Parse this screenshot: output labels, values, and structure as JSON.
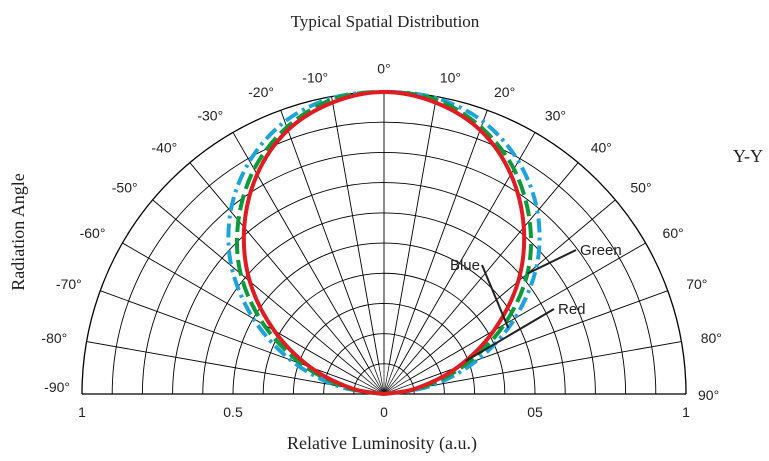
{
  "chart_data": {
    "type": "polar",
    "title": "Typical Spatial Distribution",
    "subtitle": "Y-Y",
    "xlabel": "Relative Luminosity (a.u.)",
    "ylabel": "Radiation Angle",
    "angle_range": [
      -90,
      90
    ],
    "radial_range": [
      0,
      1
    ],
    "angle_ticks": [
      {
        "deg": -90,
        "label": "-90°"
      },
      {
        "deg": -80,
        "label": "-80°"
      },
      {
        "deg": -70,
        "label": "-70°"
      },
      {
        "deg": -60,
        "label": "-60°"
      },
      {
        "deg": -50,
        "label": "-50°"
      },
      {
        "deg": -40,
        "label": "-40°"
      },
      {
        "deg": -30,
        "label": "-30°"
      },
      {
        "deg": -20,
        "label": "-20°"
      },
      {
        "deg": -10,
        "label": "-10°"
      },
      {
        "deg": 0,
        "label": "0°"
      },
      {
        "deg": 10,
        "label": "10°"
      },
      {
        "deg": 20,
        "label": "20°"
      },
      {
        "deg": 30,
        "label": "30°"
      },
      {
        "deg": 40,
        "label": "40°"
      },
      {
        "deg": 50,
        "label": "50°"
      },
      {
        "deg": 60,
        "label": "60°"
      },
      {
        "deg": 70,
        "label": "70°"
      },
      {
        "deg": 80,
        "label": "80°"
      },
      {
        "deg": 90,
        "label": "90°"
      }
    ],
    "radial_tick_labels": [
      {
        "x": -1,
        "label": "1"
      },
      {
        "x": -0.5,
        "label": "0.5"
      },
      {
        "x": 0,
        "label": "0"
      },
      {
        "x": 0.5,
        "label": "05"
      },
      {
        "x": 1,
        "label": "1"
      }
    ],
    "series": [
      {
        "name": "Red",
        "color": "#e11b22",
        "dash": "solid",
        "angles": [
          -90,
          -80,
          -70,
          -60,
          -50,
          -40,
          -30,
          -20,
          -10,
          0,
          10,
          20,
          30,
          40,
          50,
          60,
          70,
          80,
          90
        ],
        "values": [
          0.0,
          0.11,
          0.26,
          0.42,
          0.58,
          0.72,
          0.84,
          0.93,
          0.98,
          1.0,
          0.98,
          0.93,
          0.84,
          0.72,
          0.58,
          0.42,
          0.26,
          0.11,
          0.0
        ]
      },
      {
        "name": "Green",
        "color": "#0b9a3c",
        "dash": "dash",
        "angles": [
          -90,
          -80,
          -70,
          -60,
          -50,
          -40,
          -30,
          -20,
          -10,
          0,
          10,
          20,
          30,
          40,
          50,
          60,
          70,
          80,
          90
        ],
        "values": [
          0.0,
          0.13,
          0.29,
          0.46,
          0.62,
          0.75,
          0.86,
          0.94,
          0.99,
          1.0,
          0.99,
          0.94,
          0.86,
          0.75,
          0.62,
          0.46,
          0.29,
          0.13,
          0.0
        ]
      },
      {
        "name": "Blue",
        "color": "#1fa3dc",
        "dash": "dashdot",
        "angles": [
          -90,
          -80,
          -70,
          -60,
          -50,
          -40,
          -30,
          -20,
          -10,
          0,
          10,
          20,
          30,
          40,
          50,
          60,
          70,
          80,
          90
        ],
        "values": [
          0.0,
          0.16,
          0.33,
          0.5,
          0.66,
          0.79,
          0.89,
          0.96,
          0.995,
          1.0,
          0.995,
          0.96,
          0.89,
          0.79,
          0.66,
          0.5,
          0.33,
          0.16,
          0.0
        ]
      }
    ],
    "series_labels": [
      "Green",
      "Blue",
      "Red"
    ]
  }
}
